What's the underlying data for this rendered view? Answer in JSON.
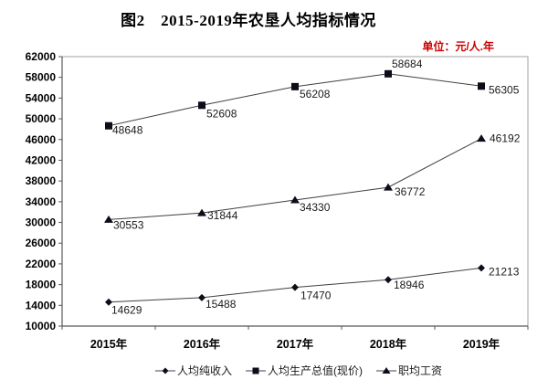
{
  "title": "图2　2015-2019年农垦人均指标情况",
  "unit_label": "单位：元/人.年",
  "chart_data": {
    "type": "line",
    "title": "图2　2015-2019年农垦人均指标情况",
    "subtitle": "",
    "unit": "单位：元/人.年",
    "xlabel": "",
    "ylabel": "",
    "categories": [
      "2015年",
      "2016年",
      "2017年",
      "2018年",
      "2019年"
    ],
    "series": [
      {
        "name": "人均纯收入",
        "marker": "diamond",
        "values": [
          14629,
          15488,
          17470,
          18946,
          21213
        ]
      },
      {
        "name": "人均生产总值(现价)",
        "marker": "square",
        "values": [
          48648,
          52608,
          56208,
          58684,
          56305
        ]
      },
      {
        "name": "职均工资",
        "marker": "triangle",
        "values": [
          30553,
          31844,
          34330,
          36772,
          46192
        ]
      }
    ],
    "ylim": [
      10000,
      62000
    ],
    "ytick_step": 4000,
    "grid": false,
    "legend_position": "bottom",
    "colors": {
      "line": "#404040",
      "marker": "#0d0d1a",
      "axis": "#595959",
      "plot_border": "#a0a0a0",
      "unit_text": "#cc0000",
      "data_label_text": "#1a1a1a",
      "tick_label_text": "#000000"
    },
    "label_offsets": [
      [
        [
          3,
          13
        ],
        [
          4,
          11
        ],
        [
          6,
          13
        ],
        [
          6,
          10
        ],
        [
          8,
          8
        ]
      ],
      [
        [
          4,
          9
        ],
        [
          5,
          13
        ],
        [
          5,
          12
        ],
        [
          4,
          -7
        ],
        [
          8,
          8
        ]
      ],
      [
        [
          5,
          10
        ],
        [
          6,
          7
        ],
        [
          5,
          12
        ],
        [
          7,
          9
        ],
        [
          9,
          4
        ]
      ]
    ]
  }
}
